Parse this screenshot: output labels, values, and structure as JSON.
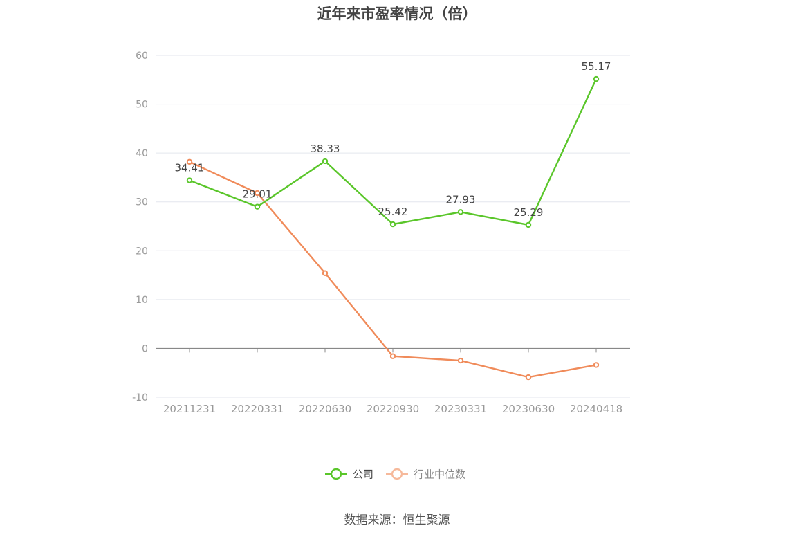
{
  "chart_data": {
    "type": "line",
    "title": "近年来市盈率情况（倍）",
    "categories": [
      "20211231",
      "20220331",
      "20220630",
      "20220930",
      "20230331",
      "20230630",
      "20240418"
    ],
    "series": [
      {
        "name": "公司",
        "color": "#5ac62a",
        "values": [
          34.41,
          29.01,
          38.33,
          25.42,
          27.93,
          25.29,
          55.17
        ],
        "labels": [
          "34.41",
          "29.01",
          "38.33",
          "25.42",
          "27.93",
          "25.29",
          "55.17"
        ]
      },
      {
        "name": "行业中位数",
        "color": "#f08b5a",
        "values": [
          38.2,
          31.8,
          15.4,
          -1.6,
          -2.5,
          -5.9,
          -3.4
        ]
      }
    ],
    "ylim": [
      -10,
      60
    ],
    "yticks": [
      -10,
      0,
      10,
      20,
      30,
      40,
      50,
      60
    ],
    "ytick_labels": [
      "-10",
      "0",
      "10",
      "20",
      "30",
      "40",
      "50",
      "60"
    ],
    "grid": true,
    "legend_position": "bottom-center",
    "source": "数据来源：恒生聚源"
  }
}
